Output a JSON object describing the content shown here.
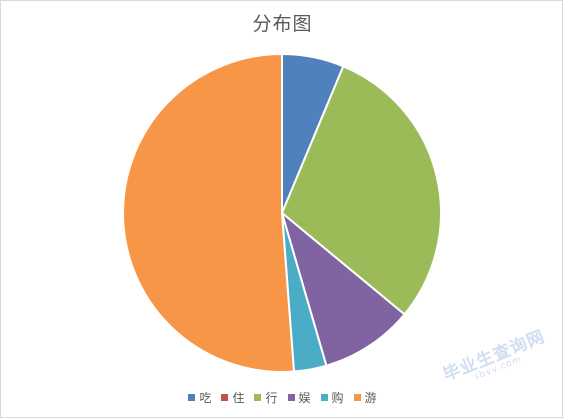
{
  "chart_data": {
    "type": "pie",
    "title": "分布图",
    "categories": [
      "吃",
      "住",
      "行",
      "娱",
      "购",
      "游"
    ],
    "values": [
      6.3,
      0,
      29.7,
      9.5,
      3.3,
      51.2
    ],
    "colors": [
      "#4f81bd",
      "#c0504d",
      "#9bbb59",
      "#8064a2",
      "#4bacc6",
      "#f79646"
    ],
    "legend_position": "bottom"
  },
  "watermark": {
    "main": "毕业生查询网",
    "sub": "sbvv.com"
  }
}
